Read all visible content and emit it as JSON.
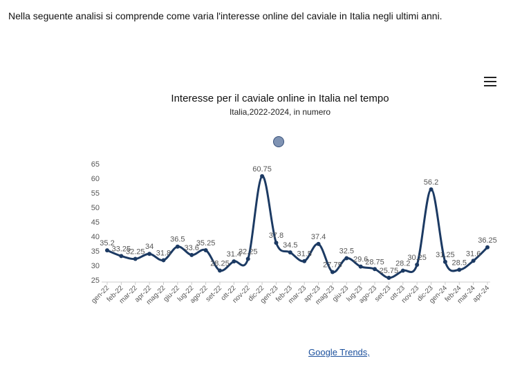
{
  "intro": "Nella seguente analisi si comprende come varia l'interesse online del caviale in Italia negli ultimi anni.",
  "source": "Google Trends,",
  "chart_data": {
    "type": "line",
    "title": "Interesse per il caviale online in Italia nel tempo",
    "subtitle": "Italia,2022-2024, in numero",
    "categories": [
      "gen-22",
      "feb-22",
      "mar-22",
      "apr-22",
      "mag-22",
      "giu-22",
      "lug-22",
      "ago-22",
      "set-22",
      "ott-22",
      "nov-22",
      "dic-22",
      "gen-23",
      "feb-23",
      "mar-23",
      "apr-23",
      "mag-23",
      "giu-23",
      "lug-23",
      "ago-23",
      "set-23",
      "ott-23",
      "nov-23",
      "dic-23",
      "gen-24",
      "feb-24",
      "mar-24",
      "apr-24"
    ],
    "values": [
      35.2,
      33.25,
      32.25,
      34,
      31.8,
      36.5,
      33.6,
      35.25,
      28.25,
      31.4,
      32.25,
      60.75,
      37.8,
      34.5,
      31.5,
      37.4,
      27.75,
      32.5,
      29.6,
      28.75,
      25.75,
      28.2,
      30.25,
      56.2,
      31.25,
      28.5,
      31.6,
      36.25
    ],
    "color": "#1c3a63",
    "ylim": [
      25,
      65
    ],
    "yticks": [
      25,
      30,
      35,
      40,
      45,
      50,
      55,
      60,
      65
    ]
  }
}
